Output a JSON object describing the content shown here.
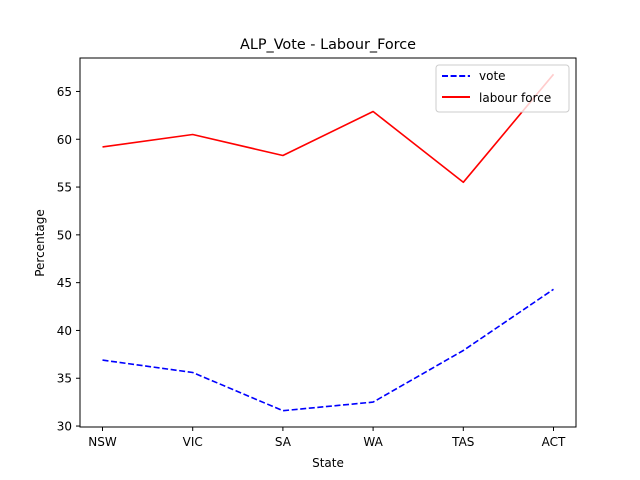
{
  "chart_data": {
    "type": "line",
    "title": "ALP_Vote - Labour_Force",
    "xlabel": "State",
    "ylabel": "Percentage",
    "categories": [
      "NSW",
      "VIC",
      "SA",
      "WA",
      "TAS",
      "ACT"
    ],
    "ylim": [
      29.9,
      68.5
    ],
    "yticks": [
      30,
      35,
      40,
      45,
      50,
      55,
      60,
      65
    ],
    "grid": false,
    "legend_position": "top-right",
    "series": [
      {
        "name": "vote",
        "values": [
          36.9,
          35.6,
          31.6,
          32.5,
          37.9,
          44.3
        ],
        "color": "#0000ff",
        "style": "dashed"
      },
      {
        "name": "labour force",
        "values": [
          59.2,
          60.5,
          58.3,
          62.9,
          55.5,
          66.8
        ],
        "color": "#ff0000",
        "style": "solid"
      }
    ]
  }
}
